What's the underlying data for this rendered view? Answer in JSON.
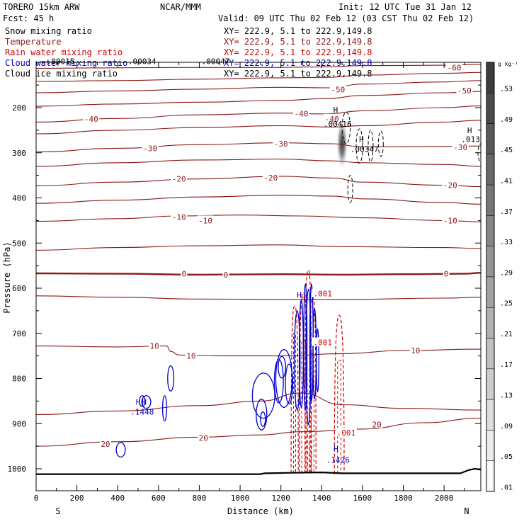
{
  "header": {
    "model": "TORERO  15km ARW",
    "org": "NCAR/MMM",
    "init": "Init: 12 UTC Tue 31 Jan 12",
    "fcst": "Fcst:   45 h",
    "valid": "Valid: 09 UTC Thu 02 Feb 12 (03 CST Thu 02 Feb 12)"
  },
  "legend": [
    {
      "name": "Snow mixing ratio",
      "color": "#000000",
      "xy": "XY= 222.9,  5.1 to 222.9,149.8"
    },
    {
      "name": "Temperature",
      "color": "#8b1a1a",
      "xy": "XY= 222.9,  5.1 to 222.9,149.8"
    },
    {
      "name": "Rain water mixing ratio",
      "color": "#d40000",
      "xy": "XY= 222.9,  5.1 to 222.9,149.8"
    },
    {
      "name": "Cloud water mixing ratio",
      "color": "#0000cc",
      "xy": "XY= 222.9,  5.1 to 222.9,149.8"
    },
    {
      "name": "Cloud ice mixing ratio",
      "color": "#000000",
      "xy": "XY= 222.9,  5.1 to 222.9,149.8"
    }
  ],
  "colorbar": {
    "unit": "g kg⁻¹",
    "labels": [
      ".53",
      ".49",
      ".45",
      ".41",
      ".37",
      ".33",
      ".29",
      ".25",
      ".21",
      ".17",
      ".13",
      ".09",
      ".05",
      ".01"
    ]
  },
  "chart_data": {
    "type": "contour-cross-section",
    "xlabel": "Distance (km)",
    "ylabel": "Pressure (hPa)",
    "xlim": [
      0,
      2180
    ],
    "ylim": [
      1050,
      100
    ],
    "xticks": [
      0,
      200,
      400,
      600,
      800,
      1000,
      1200,
      1400,
      1600,
      1800,
      2000
    ],
    "yticks": [
      200,
      300,
      400,
      500,
      600,
      700,
      800,
      900,
      1000
    ],
    "end_labels": {
      "left": "S",
      "right": "N"
    },
    "temperature_contours": [
      {
        "T": -60,
        "points": [
          [
            0,
            113
          ],
          [
            300,
            112
          ],
          [
            700,
            111
          ],
          [
            1100,
            111
          ],
          [
            1400,
            110
          ],
          [
            1600,
            107
          ],
          [
            2000,
            106
          ],
          [
            2180,
            104
          ]
        ]
      },
      {
        "T": -55,
        "points": [
          [
            0,
            142
          ],
          [
            400,
            140
          ],
          [
            800,
            137
          ],
          [
            1200,
            134
          ],
          [
            1420,
            133
          ],
          [
            1600,
            128
          ],
          [
            2000,
            124
          ],
          [
            2180,
            122
          ]
        ]
      },
      {
        "T": -50,
        "points": [
          [
            0,
            167
          ],
          [
            400,
            163
          ],
          [
            800,
            159
          ],
          [
            1200,
            155
          ],
          [
            1440,
            156
          ],
          [
            1600,
            148
          ],
          [
            2000,
            143
          ],
          [
            2180,
            140
          ]
        ]
      },
      {
        "T": -45,
        "points": [
          [
            0,
            197
          ],
          [
            400,
            192
          ],
          [
            800,
            188
          ],
          [
            1200,
            184
          ],
          [
            1420,
            180
          ],
          [
            1600,
            173
          ],
          [
            2000,
            167
          ],
          [
            2180,
            164
          ]
        ]
      },
      {
        "T": -40,
        "points": [
          [
            0,
            232
          ],
          [
            400,
            224
          ],
          [
            800,
            216
          ],
          [
            1200,
            212
          ],
          [
            1420,
            214
          ],
          [
            1600,
            207
          ],
          [
            2000,
            200
          ],
          [
            2180,
            196
          ]
        ]
      },
      {
        "T": -35,
        "points": [
          [
            0,
            258
          ],
          [
            400,
            250
          ],
          [
            800,
            244
          ],
          [
            1200,
            240
          ],
          [
            1450,
            243
          ],
          [
            1600,
            240
          ],
          [
            2000,
            232
          ],
          [
            2180,
            228
          ]
        ]
      },
      {
        "T": -30,
        "points": [
          [
            0,
            298
          ],
          [
            400,
            290
          ],
          [
            800,
            282
          ],
          [
            1200,
            278
          ],
          [
            1450,
            280
          ],
          [
            1600,
            287
          ],
          [
            2000,
            286
          ],
          [
            2180,
            285
          ]
        ]
      },
      {
        "T": -25,
        "points": [
          [
            0,
            330
          ],
          [
            400,
            322
          ],
          [
            800,
            316
          ],
          [
            1200,
            314
          ],
          [
            1450,
            318
          ],
          [
            1600,
            322
          ],
          [
            2000,
            326
          ],
          [
            2180,
            330
          ]
        ]
      },
      {
        "T": -20,
        "points": [
          [
            0,
            373
          ],
          [
            400,
            365
          ],
          [
            800,
            358
          ],
          [
            1200,
            352
          ],
          [
            1450,
            356
          ],
          [
            1600,
            365
          ],
          [
            2000,
            372
          ],
          [
            2180,
            375
          ]
        ]
      },
      {
        "T": -15,
        "points": [
          [
            0,
            412
          ],
          [
            400,
            405
          ],
          [
            800,
            398
          ],
          [
            1200,
            394
          ],
          [
            1450,
            396
          ],
          [
            1600,
            402
          ],
          [
            2000,
            410
          ],
          [
            2180,
            414
          ]
        ]
      },
      {
        "T": -10,
        "points": [
          [
            0,
            452
          ],
          [
            400,
            446
          ],
          [
            700,
            440
          ],
          [
            1000,
            438
          ],
          [
            1300,
            440
          ],
          [
            1600,
            444
          ],
          [
            2000,
            450
          ],
          [
            2180,
            453
          ]
        ]
      },
      {
        "T": -5,
        "points": [
          [
            0,
            516
          ],
          [
            400,
            510
          ],
          [
            800,
            506
          ],
          [
            1200,
            504
          ],
          [
            1500,
            508
          ],
          [
            2000,
            510
          ],
          [
            2180,
            512
          ]
        ]
      },
      {
        "T": 0,
        "points": [
          [
            0,
            567
          ],
          [
            400,
            568
          ],
          [
            800,
            570
          ],
          [
            1200,
            569
          ],
          [
            1500,
            570
          ],
          [
            1800,
            569
          ],
          [
            2100,
            568
          ],
          [
            2180,
            566
          ]
        ]
      },
      {
        "T": 5,
        "points": [
          [
            0,
            617
          ],
          [
            400,
            620
          ],
          [
            800,
            624
          ],
          [
            1200,
            625
          ],
          [
            1500,
            625
          ],
          [
            2000,
            622
          ],
          [
            2180,
            620
          ]
        ]
      },
      {
        "T": 10,
        "points": [
          [
            0,
            728
          ],
          [
            400,
            730
          ],
          [
            640,
            728
          ],
          [
            660,
            740
          ],
          [
            700,
            748
          ],
          [
            900,
            750
          ],
          [
            1200,
            750
          ],
          [
            1500,
            745
          ],
          [
            1800,
            738
          ],
          [
            2180,
            735
          ]
        ]
      },
      {
        "T": 15,
        "points": [
          [
            0,
            880
          ],
          [
            400,
            872
          ],
          [
            800,
            860
          ],
          [
            1100,
            850
          ],
          [
            1300,
            832
          ],
          [
            1500,
            858
          ],
          [
            1800,
            866
          ],
          [
            2180,
            870
          ]
        ]
      },
      {
        "T": 20,
        "points": [
          [
            0,
            950
          ],
          [
            400,
            940
          ],
          [
            800,
            930
          ],
          [
            1100,
            925
          ],
          [
            1300,
            918
          ],
          [
            1600,
            912
          ],
          [
            1900,
            898
          ],
          [
            2180,
            888
          ]
        ]
      }
    ],
    "temperature_labels": [
      {
        "text": "-60",
        "x": 2050,
        "p": 111
      },
      {
        "text": "-50",
        "x": 2100,
        "p": 162
      },
      {
        "text": "-50",
        "x": 1480,
        "p": 160
      },
      {
        "text": "-40",
        "x": 270,
        "p": 225
      },
      {
        "text": "-40",
        "x": 1300,
        "p": 213
      },
      {
        "text": "-40",
        "x": 1450,
        "p": 225
      },
      {
        "text": "-30",
        "x": 560,
        "p": 290
      },
      {
        "text": "-30",
        "x": 1200,
        "p": 280
      },
      {
        "text": "-30",
        "x": 2080,
        "p": 288
      },
      {
        "text": "-20",
        "x": 700,
        "p": 358
      },
      {
        "text": "-20",
        "x": 1150,
        "p": 355
      },
      {
        "text": "-20",
        "x": 2030,
        "p": 372
      },
      {
        "text": "-10",
        "x": 700,
        "p": 442
      },
      {
        "text": "-10",
        "x": 830,
        "p": 450
      },
      {
        "text": "-10",
        "x": 2030,
        "p": 450
      },
      {
        "text": "0",
        "x": 725,
        "p": 568
      },
      {
        "text": "0",
        "x": 930,
        "p": 570
      },
      {
        "text": "0",
        "x": 2010,
        "p": 568
      },
      {
        "text": "10",
        "x": 580,
        "p": 728
      },
      {
        "text": "10",
        "x": 760,
        "p": 750
      },
      {
        "text": "10",
        "x": 1860,
        "p": 738
      },
      {
        "text": "20",
        "x": 340,
        "p": 945
      },
      {
        "text": "20",
        "x": 820,
        "p": 932
      },
      {
        "text": "20",
        "x": 1670,
        "p": 902
      }
    ],
    "rain_contours": [
      {
        "x0": 1250,
        "x1": 1285,
        "ptop": 640,
        "pbot": 1010
      },
      {
        "x0": 1290,
        "x1": 1330,
        "ptop": 610,
        "pbot": 1010
      },
      {
        "x0": 1318,
        "x1": 1350,
        "ptop": 560,
        "pbot": 1010
      },
      {
        "x0": 1340,
        "x1": 1372,
        "ptop": 620,
        "pbot": 1010
      },
      {
        "x0": 1462,
        "x1": 1510,
        "ptop": 660,
        "pbot": 1012
      }
    ],
    "rain_labels": [
      {
        "text": ".001",
        "x": 1405,
        "p": 612
      },
      {
        "text": ".001",
        "x": 1405,
        "p": 720
      },
      {
        "text": ".001",
        "x": 1520,
        "p": 920
      }
    ],
    "rain_extrema": [
      {
        "text": "H",
        "x": 1310,
        "p": 620
      }
    ],
    "cloudwater_contours": [
      {
        "cx": 660,
        "p": 800,
        "rx": 15,
        "rp": 28
      },
      {
        "cx": 630,
        "p": 866,
        "rx": 10,
        "rp": 28
      },
      {
        "cx": 520,
        "p": 850,
        "rx": 14,
        "rp": 12
      },
      {
        "cx": 540,
        "p": 852,
        "rx": 22,
        "rp": 14
      },
      {
        "cx": 415,
        "p": 958,
        "rx": 22,
        "rp": 16
      },
      {
        "cx": 1115,
        "p": 838,
        "rx": 55,
        "rp": 50
      },
      {
        "cx": 1215,
        "p": 800,
        "rx": 40,
        "rp": 64
      },
      {
        "cx": 1205,
        "p": 775,
        "rx": 18,
        "rp": 24
      },
      {
        "cx": 1105,
        "p": 880,
        "rx": 26,
        "rp": 34
      },
      {
        "cx": 1112,
        "p": 890,
        "rx": 12,
        "rp": 16
      },
      {
        "cx": 1190,
        "p": 806,
        "rx": 22,
        "rp": 48
      },
      {
        "cx": 1240,
        "p": 812,
        "rx": 18,
        "rp": 44
      },
      {
        "cx": 1280,
        "p": 760,
        "rx": 14,
        "rp": 110
      },
      {
        "cx": 1300,
        "p": 745,
        "rx": 10,
        "rp": 120
      },
      {
        "cx": 1320,
        "p": 730,
        "rx": 8,
        "rp": 140
      },
      {
        "cx": 1335,
        "p": 752,
        "rx": 12,
        "rp": 150
      },
      {
        "cx": 1350,
        "p": 720,
        "rx": 8,
        "rp": 130
      },
      {
        "cx": 1365,
        "p": 745,
        "rx": 8,
        "rp": 100
      },
      {
        "cx": 1380,
        "p": 760,
        "rx": 6,
        "rp": 70
      }
    ],
    "cloudwater_labels": [
      {
        "text": ".1448",
        "x": 520,
        "p": 874
      },
      {
        "text": ".1426",
        "x": 1480,
        "p": 980
      }
    ],
    "cloudwater_extrema": [
      {
        "text": "H",
        "x": 500,
        "p": 852
      },
      {
        "text": "H",
        "x": 530,
        "p": 852
      },
      {
        "text": "H",
        "x": 1470,
        "p": 955
      },
      {
        "text": "H",
        "x": 1290,
        "p": 615
      }
    ],
    "ice_contours": [
      {
        "cx": 1520,
        "p": 245,
        "rx": 20,
        "rp": 35
      },
      {
        "cx": 1585,
        "p": 285,
        "rx": 16,
        "rp": 38
      },
      {
        "cx": 1640,
        "p": 285,
        "rx": 12,
        "rp": 35
      },
      {
        "cx": 1690,
        "p": 280,
        "rx": 12,
        "rp": 28
      },
      {
        "cx": 1540,
        "p": 380,
        "rx": 12,
        "rp": 30
      },
      {
        "cx": 2180,
        "p": 300,
        "rx": 14,
        "rp": 20
      }
    ],
    "snow_shading": {
      "cx": 1500,
      "p": 280,
      "rx": 28,
      "rp": 55,
      "max": 0.53
    },
    "annotations": [
      {
        "text": "H",
        "x": 1468,
        "p": 205
      },
      {
        "text": ".00416",
        "x": 1478,
        "p": 236
      },
      {
        "text": "H",
        "x": 1595,
        "p": 270
      },
      {
        "text": ".00347",
        "x": 1610,
        "p": 292
      },
      {
        "text": "H",
        "x": 2125,
        "p": 250
      },
      {
        "text": ".013",
        "x": 2130,
        "p": 270
      },
      {
        "text": ".00015",
        "x": 120,
        "p": 97
      },
      {
        "text": ".00034",
        "x": 520,
        "p": 97
      },
      {
        "text": ".00047",
        "x": 880,
        "p": 97
      }
    ],
    "terrain": [
      [
        0,
        1012
      ],
      [
        1100,
        1012
      ],
      [
        1120,
        1010
      ],
      [
        1250,
        1009
      ],
      [
        1400,
        1008
      ],
      [
        1500,
        1010
      ],
      [
        1800,
        1010
      ],
      [
        2080,
        1010
      ],
      [
        2120,
        1003
      ],
      [
        2150,
        1000
      ],
      [
        2180,
        1002
      ]
    ]
  }
}
